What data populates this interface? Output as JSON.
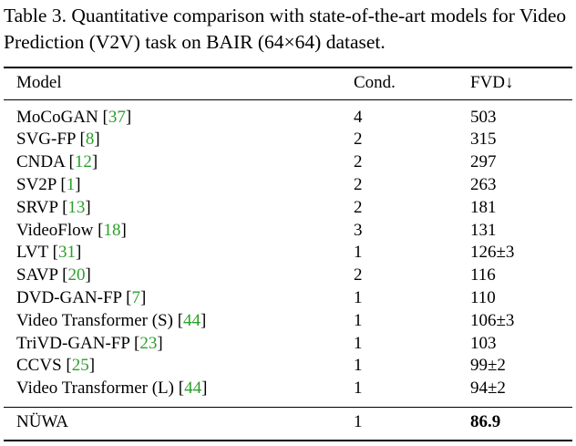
{
  "caption": "Table 3. Quantitative comparison with state-of-the-art models for Video Prediction (V2V) task on BAIR (64×64) dataset.",
  "headers": {
    "model": "Model",
    "cond": "Cond.",
    "fvd": "FVD↓"
  },
  "rows": [
    {
      "model": "MoCoGAN",
      "ref": "37",
      "cond": "4",
      "fvd": "503"
    },
    {
      "model": "SVG-FP",
      "ref": "8",
      "cond": "2",
      "fvd": "315"
    },
    {
      "model": "CNDA",
      "ref": "12",
      "cond": "2",
      "fvd": "297"
    },
    {
      "model": "SV2P",
      "ref": "1",
      "cond": "2",
      "fvd": "263"
    },
    {
      "model": "SRVP",
      "ref": "13",
      "cond": "2",
      "fvd": "181"
    },
    {
      "model": "VideoFlow",
      "ref": "18",
      "cond": "3",
      "fvd": "131"
    },
    {
      "model": "LVT",
      "ref": "31",
      "cond": "1",
      "fvd": "126±3"
    },
    {
      "model": "SAVP",
      "ref": "20",
      "cond": "2",
      "fvd": "116"
    },
    {
      "model": "DVD-GAN-FP",
      "ref": "7",
      "cond": "1",
      "fvd": "110"
    },
    {
      "model": "Video Transformer (S)",
      "ref": "44",
      "cond": "1",
      "fvd": "106±3"
    },
    {
      "model": "TriVD-GAN-FP",
      "ref": "23",
      "cond": "1",
      "fvd": "103"
    },
    {
      "model": "CCVS",
      "ref": "25",
      "cond": "1",
      "fvd": "99±2"
    },
    {
      "model": "Video Transformer (L)",
      "ref": "44",
      "cond": "1",
      "fvd": "94±2"
    }
  ],
  "ours": {
    "model": "NÜWA",
    "cond": "1",
    "fvd": "86.9"
  },
  "colors": {
    "citation": "#2aa02a",
    "text": "#000000"
  }
}
